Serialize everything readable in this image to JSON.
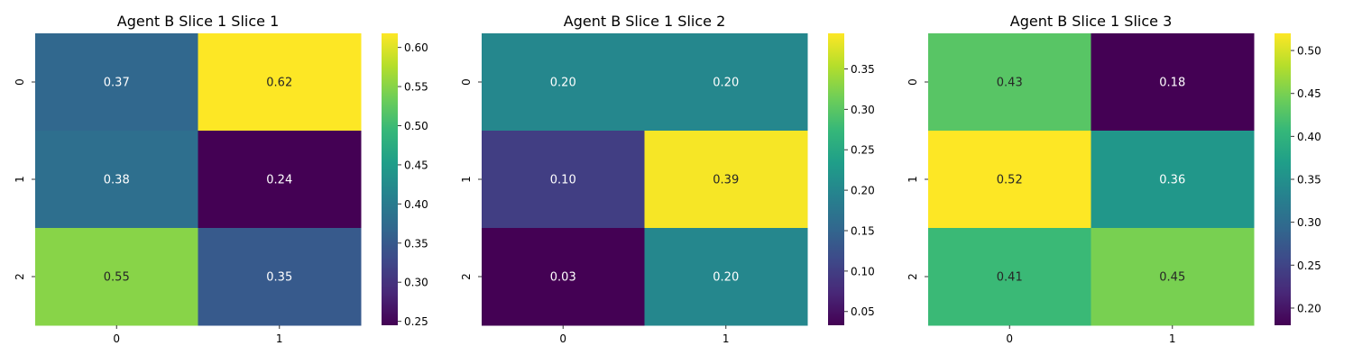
{
  "chart_data": [
    {
      "type": "heatmap",
      "title": "Agent B Slice 1 Slice 1",
      "x_categories": [
        "0",
        "1"
      ],
      "y_categories": [
        "0",
        "1",
        "2"
      ],
      "values": [
        [
          0.37,
          0.62
        ],
        [
          0.38,
          0.24
        ],
        [
          0.55,
          0.35
        ]
      ],
      "value_labels": [
        [
          "0.37",
          "0.62"
        ],
        [
          "0.38",
          "0.24"
        ],
        [
          "0.55",
          "0.35"
        ]
      ],
      "colormap": "viridis",
      "vmin": 0.245,
      "vmax": 0.618,
      "colorbar_ticks": [
        0.25,
        0.3,
        0.35,
        0.4,
        0.45,
        0.5,
        0.55,
        0.6
      ],
      "colorbar_tick_labels": [
        "0.25",
        "0.30",
        "0.35",
        "0.40",
        "0.45",
        "0.50",
        "0.55",
        "0.60"
      ]
    },
    {
      "type": "heatmap",
      "title": "Agent B Slice 1 Slice 2",
      "x_categories": [
        "0",
        "1"
      ],
      "y_categories": [
        "0",
        "1",
        "2"
      ],
      "values": [
        [
          0.2,
          0.2
        ],
        [
          0.1,
          0.39
        ],
        [
          0.03,
          0.2
        ]
      ],
      "value_labels": [
        [
          "0.20",
          "0.20"
        ],
        [
          "0.10",
          "0.39"
        ],
        [
          "0.03",
          "0.20"
        ]
      ],
      "colormap": "viridis",
      "vmin": 0.033,
      "vmax": 0.394,
      "colorbar_ticks": [
        0.05,
        0.1,
        0.15,
        0.2,
        0.25,
        0.3,
        0.35
      ],
      "colorbar_tick_labels": [
        "0.05",
        "0.10",
        "0.15",
        "0.20",
        "0.25",
        "0.30",
        "0.35"
      ]
    },
    {
      "type": "heatmap",
      "title": "Agent B Slice 1 Slice 3",
      "x_categories": [
        "0",
        "1"
      ],
      "y_categories": [
        "0",
        "1",
        "2"
      ],
      "values": [
        [
          0.43,
          0.18
        ],
        [
          0.52,
          0.36
        ],
        [
          0.41,
          0.45
        ]
      ],
      "value_labels": [
        [
          "0.43",
          "0.18"
        ],
        [
          "0.52",
          "0.36"
        ],
        [
          "0.41",
          "0.45"
        ]
      ],
      "colormap": "viridis",
      "vmin": 0.18,
      "vmax": 0.52,
      "colorbar_ticks": [
        0.2,
        0.25,
        0.3,
        0.35,
        0.4,
        0.45,
        0.5
      ],
      "colorbar_tick_labels": [
        "0.20",
        "0.25",
        "0.30",
        "0.35",
        "0.40",
        "0.45",
        "0.50"
      ]
    }
  ]
}
